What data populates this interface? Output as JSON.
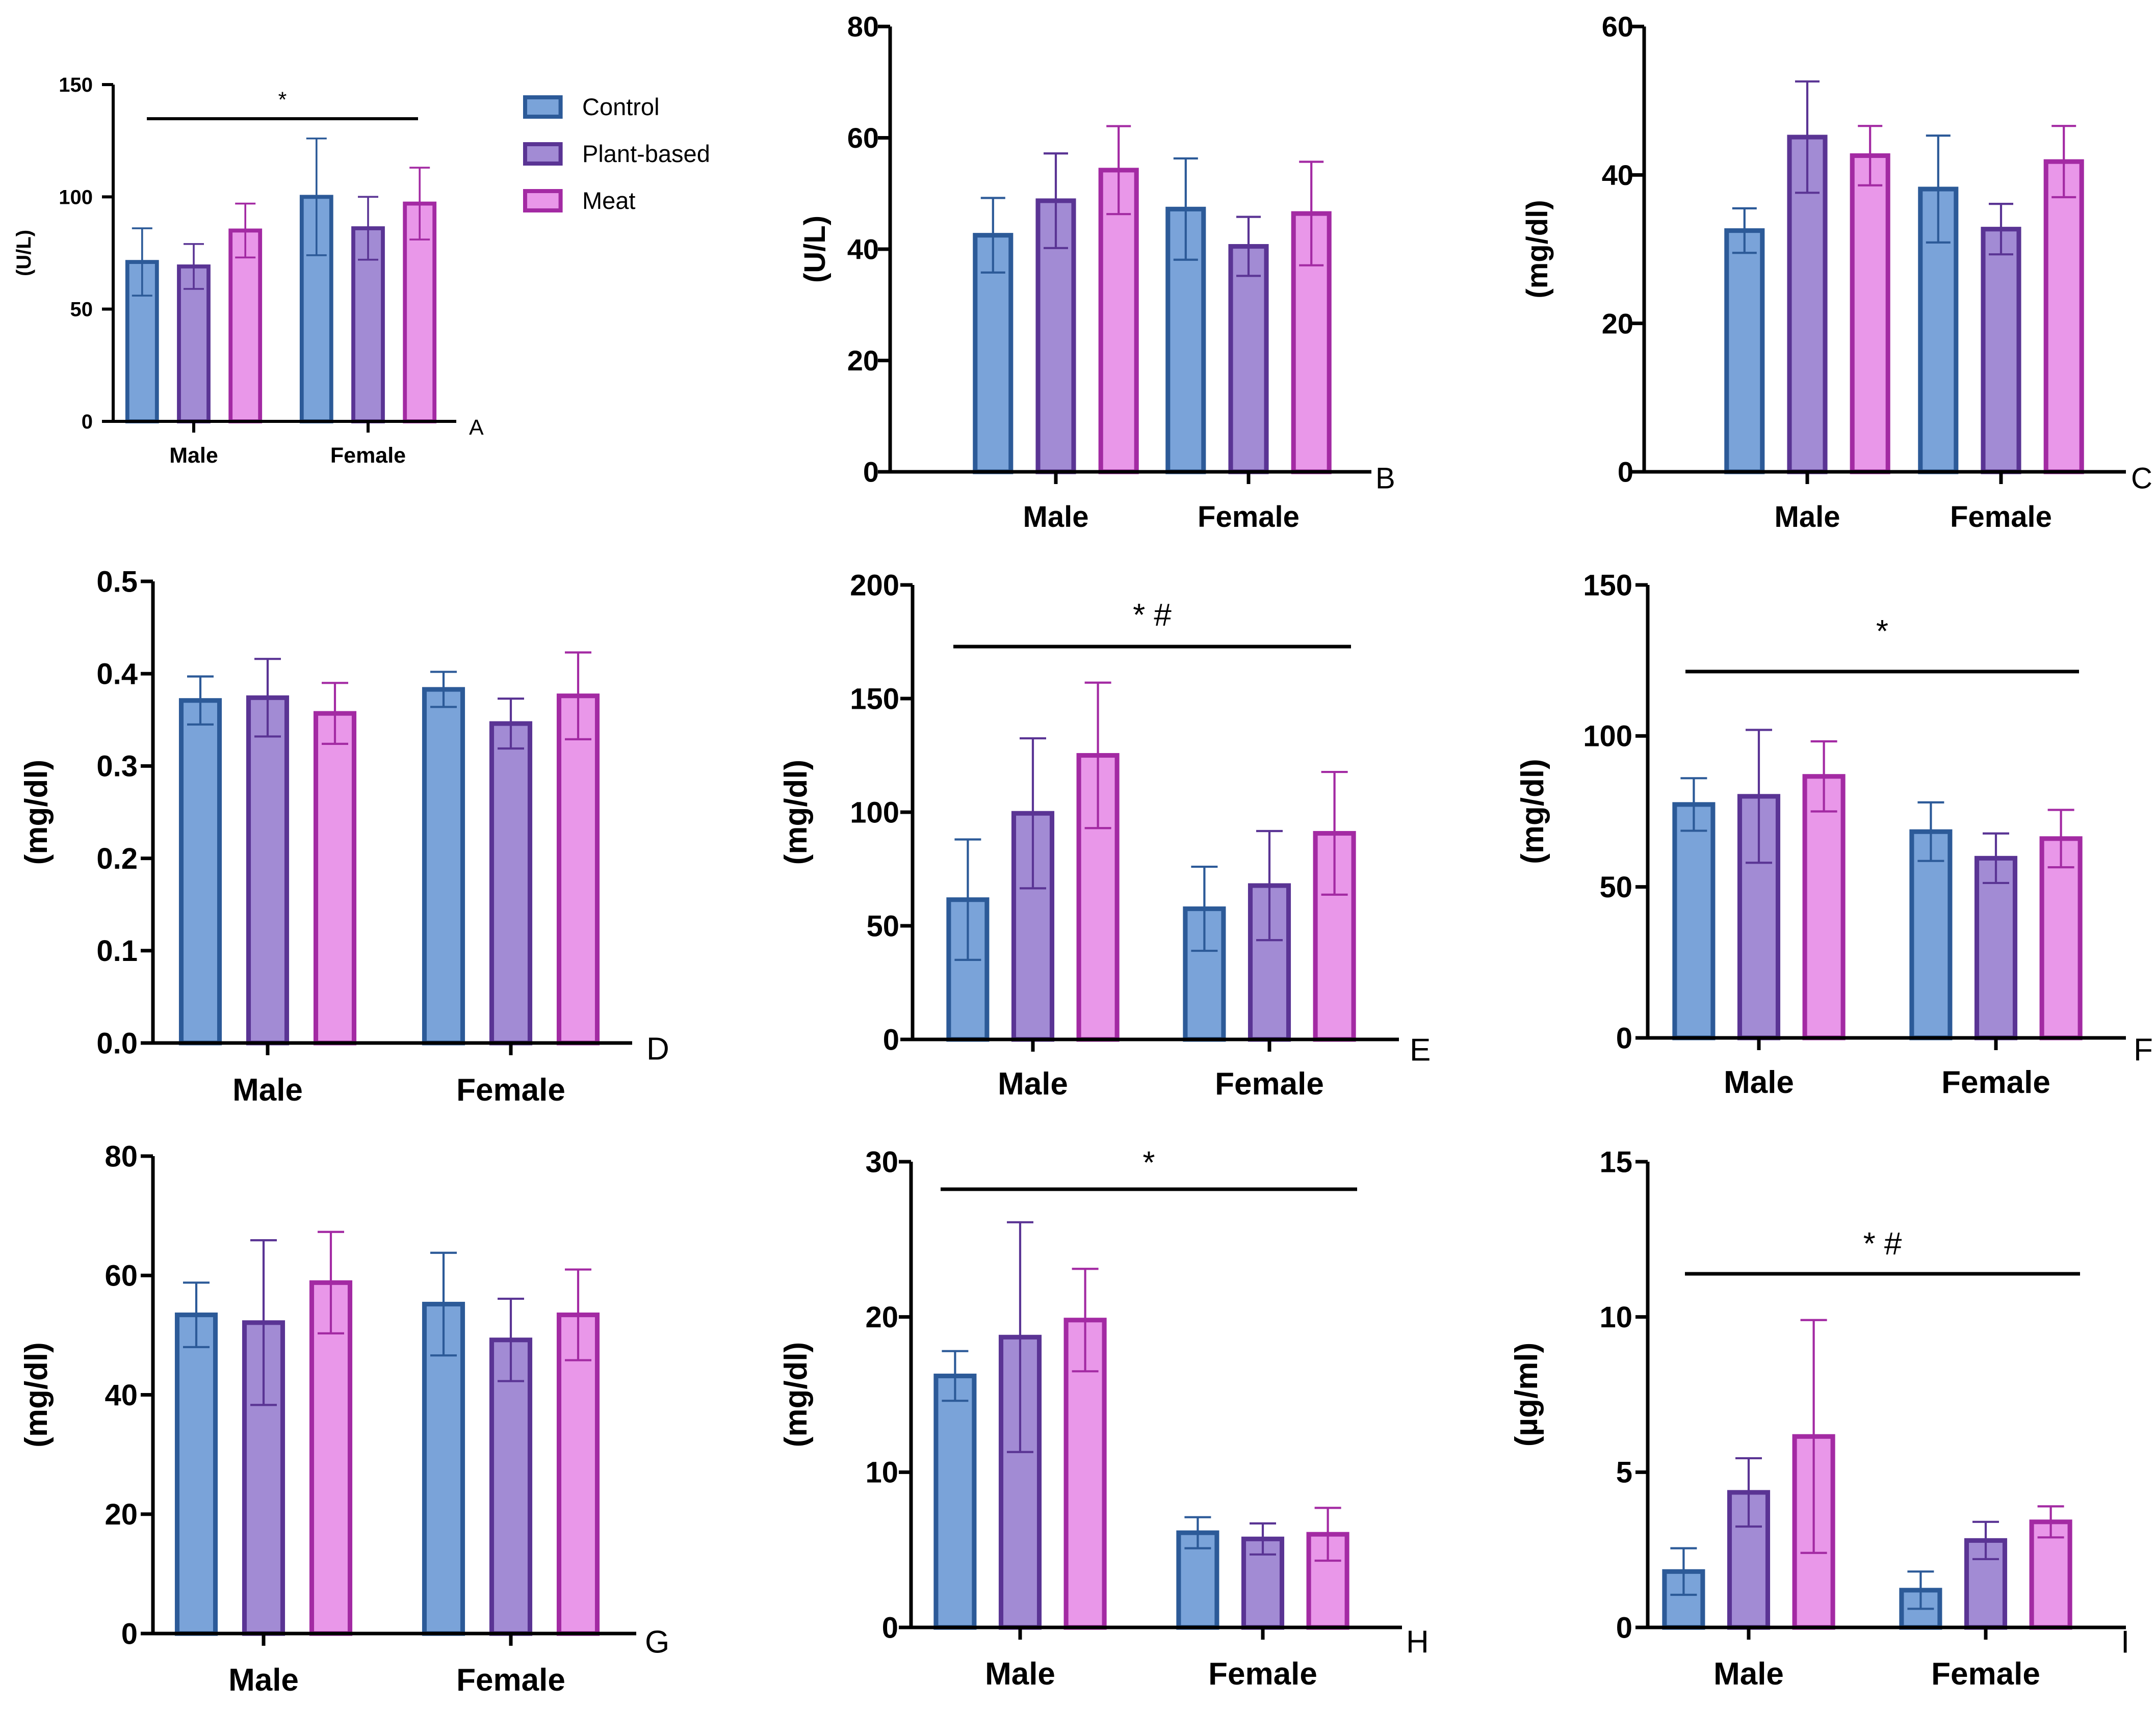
{
  "legend": {
    "items": [
      {
        "label": "Control",
        "fill": "#7aa3d9",
        "stroke": "#2c5a98"
      },
      {
        "label": "Plant-based",
        "fill": "#a28bd4",
        "stroke": "#5a3494"
      },
      {
        "label": "Meat",
        "fill": "#e997e9",
        "stroke": "#a32aa3"
      }
    ]
  },
  "chart_data": [
    {
      "panel": "A",
      "type": "bar",
      "ylabel": "(U/L)",
      "ylim": [
        0,
        150
      ],
      "yticks": [
        0,
        50,
        100,
        150
      ],
      "categories": [
        "Male",
        "Female"
      ],
      "series": [
        {
          "name": "Control",
          "values": [
            71,
            100
          ],
          "errors": [
            15,
            26
          ]
        },
        {
          "name": "Plant-based",
          "values": [
            69,
            86
          ],
          "errors": [
            10,
            14
          ]
        },
        {
          "name": "Meat",
          "values": [
            85,
            97
          ],
          "errors": [
            12,
            16
          ]
        }
      ],
      "significance": "*"
    },
    {
      "panel": "B",
      "type": "bar",
      "ylabel": "(U/L)",
      "ylim": [
        0,
        80
      ],
      "yticks": [
        0,
        20,
        40,
        60,
        80
      ],
      "categories": [
        "Male",
        "Female"
      ],
      "series": [
        {
          "name": "Control",
          "values": [
            42.5,
            47.2
          ],
          "errors": [
            6.7,
            9.1
          ]
        },
        {
          "name": "Plant-based",
          "values": [
            48.7,
            40.5
          ],
          "errors": [
            8.5,
            5.3
          ]
        },
        {
          "name": "Meat",
          "values": [
            54.2,
            46.4
          ],
          "errors": [
            7.9,
            9.3
          ]
        }
      ],
      "significance": ""
    },
    {
      "panel": "C",
      "type": "bar",
      "ylabel": "(mg/dl)",
      "ylim": [
        0,
        60
      ],
      "yticks": [
        0,
        20,
        40,
        60
      ],
      "categories": [
        "Male",
        "Female"
      ],
      "series": [
        {
          "name": "Control",
          "values": [
            32.5,
            38.1
          ],
          "errors": [
            3,
            7.2
          ]
        },
        {
          "name": "Plant-based",
          "values": [
            45.1,
            32.7
          ],
          "errors": [
            7.5,
            3.4
          ]
        },
        {
          "name": "Meat",
          "values": [
            42.6,
            41.8
          ],
          "errors": [
            4,
            4.8
          ]
        }
      ],
      "significance": ""
    },
    {
      "panel": "D",
      "type": "bar",
      "ylabel": "(mg/dl)",
      "ylim": [
        0,
        0.5
      ],
      "yticks": [
        0.0,
        0.1,
        0.2,
        0.3,
        0.4,
        0.5
      ],
      "categories": [
        "Male",
        "Female"
      ],
      "series": [
        {
          "name": "Control",
          "values": [
            0.371,
            0.383
          ],
          "errors": [
            0.026,
            0.019
          ]
        },
        {
          "name": "Plant-based",
          "values": [
            0.374,
            0.346
          ],
          "errors": [
            0.042,
            0.027
          ]
        },
        {
          "name": "Meat",
          "values": [
            0.357,
            0.376
          ],
          "errors": [
            0.033,
            0.047
          ]
        }
      ],
      "significance": ""
    },
    {
      "panel": "E",
      "type": "bar",
      "ylabel": "(mg/dl)",
      "ylim": [
        0,
        200
      ],
      "yticks": [
        0,
        50,
        100,
        150,
        200
      ],
      "categories": [
        "Male",
        "Female"
      ],
      "series": [
        {
          "name": "Control",
          "values": [
            61.5,
            57.5
          ],
          "errors": [
            26.5,
            18.5
          ]
        },
        {
          "name": "Plant-based",
          "values": [
            99.5,
            67.7
          ],
          "errors": [
            33,
            24
          ]
        },
        {
          "name": "Meat",
          "values": [
            125,
            90.7
          ],
          "errors": [
            32,
            27
          ]
        }
      ],
      "significance": "* #"
    },
    {
      "panel": "F",
      "type": "bar",
      "ylabel": "(mg/dl)",
      "ylim": [
        0,
        150
      ],
      "yticks": [
        0,
        50,
        100,
        150
      ],
      "categories": [
        "Male",
        "Female"
      ],
      "series": [
        {
          "name": "Control",
          "values": [
            77.3,
            68.3
          ],
          "errors": [
            8.7,
            9.7
          ]
        },
        {
          "name": "Plant-based",
          "values": [
            80,
            59.5
          ],
          "errors": [
            22,
            8.2
          ]
        },
        {
          "name": "Meat",
          "values": [
            86.6,
            66
          ],
          "errors": [
            11.6,
            9.5
          ]
        }
      ],
      "significance": "*"
    },
    {
      "panel": "G",
      "type": "bar",
      "ylabel": "(mg/dl)",
      "ylim": [
        0,
        80
      ],
      "yticks": [
        0,
        20,
        40,
        60,
        80
      ],
      "categories": [
        "Male",
        "Female"
      ],
      "series": [
        {
          "name": "Control",
          "values": [
            53.4,
            55.2
          ],
          "errors": [
            5.4,
            8.6
          ]
        },
        {
          "name": "Plant-based",
          "values": [
            52.1,
            49.2
          ],
          "errors": [
            13.8,
            6.9
          ]
        },
        {
          "name": "Meat",
          "values": [
            58.8,
            53.4
          ],
          "errors": [
            8.5,
            7.6
          ]
        }
      ],
      "significance": ""
    },
    {
      "panel": "H",
      "type": "bar",
      "ylabel": "(mg/dl)",
      "ylim": [
        0,
        30
      ],
      "yticks": [
        0,
        10,
        20,
        30
      ],
      "categories": [
        "Male",
        "Female"
      ],
      "series": [
        {
          "name": "Control",
          "values": [
            16.2,
            6.1
          ],
          "errors": [
            1.6,
            1
          ]
        },
        {
          "name": "Plant-based",
          "values": [
            18.7,
            5.7
          ],
          "errors": [
            7.4,
            1
          ]
        },
        {
          "name": "Meat",
          "values": [
            19.8,
            6
          ],
          "errors": [
            3.3,
            1.7
          ]
        }
      ],
      "significance": "*"
    },
    {
      "panel": "I",
      "type": "bar",
      "ylabel": "(µg/ml)",
      "ylim": [
        0,
        15
      ],
      "yticks": [
        0,
        5,
        10,
        15
      ],
      "categories": [
        "Male",
        "Female"
      ],
      "series": [
        {
          "name": "Control",
          "values": [
            1.8,
            1.2
          ],
          "errors": [
            0.75,
            0.6
          ]
        },
        {
          "name": "Plant-based",
          "values": [
            4.35,
            2.8
          ],
          "errors": [
            1.1,
            0.6
          ]
        },
        {
          "name": "Meat",
          "values": [
            6.15,
            3.4
          ],
          "errors": [
            3.75,
            0.5
          ]
        }
      ],
      "significance": "* #"
    }
  ]
}
